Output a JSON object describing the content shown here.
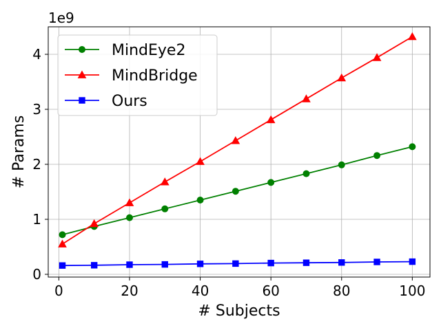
{
  "chart_data": {
    "type": "line",
    "title": "",
    "xlabel": "# Subjects",
    "ylabel": "# Params",
    "y_offset_label": "1e9",
    "x": [
      1,
      10,
      20,
      30,
      40,
      50,
      60,
      70,
      80,
      90,
      100
    ],
    "xlim": [
      -3,
      105
    ],
    "ylim": [
      -0.05,
      4.5
    ],
    "xticks": [
      0,
      20,
      40,
      60,
      80,
      100
    ],
    "yticks": [
      0,
      1,
      2,
      3,
      4
    ],
    "grid": true,
    "legend_position": "upper-left",
    "series": [
      {
        "name": "MindEye2",
        "color": "#008000",
        "marker": "circle",
        "values": [
          0.72,
          0.87,
          1.03,
          1.19,
          1.35,
          1.51,
          1.67,
          1.83,
          1.99,
          2.16,
          2.32
        ]
      },
      {
        "name": "MindBridge",
        "color": "#ff0000",
        "marker": "triangle",
        "values": [
          0.55,
          0.92,
          1.3,
          1.68,
          2.05,
          2.43,
          2.81,
          3.19,
          3.57,
          3.94,
          4.32
        ]
      },
      {
        "name": "Ours",
        "color": "#0000ff",
        "marker": "square",
        "values": [
          0.16,
          0.165,
          0.175,
          0.18,
          0.19,
          0.195,
          0.205,
          0.21,
          0.215,
          0.225,
          0.23
        ]
      }
    ]
  }
}
